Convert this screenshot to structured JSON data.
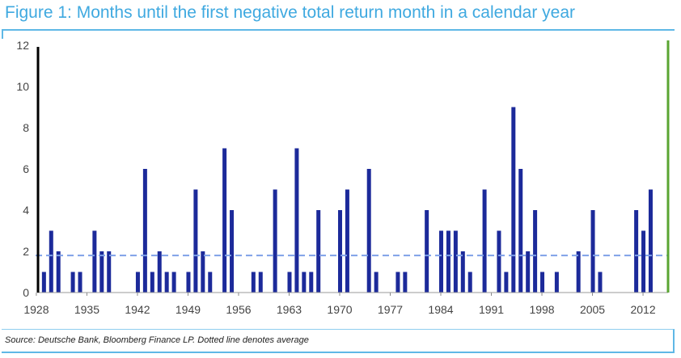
{
  "title": "Figure 1: Months until the first negative total return month in a calendar year",
  "source": "Source: Deutsche Bank, Bloomberg Finance LP. Dotted line denotes average",
  "colors": {
    "title": "#3fa9e0",
    "bar": "#1c2a9a",
    "average": "#7fa0e8",
    "right_axis": "#5aa532"
  },
  "chart_data": {
    "type": "bar",
    "xlabel": "",
    "ylabel": "",
    "ylim": [
      0,
      12
    ],
    "yticks": [
      0,
      2,
      4,
      6,
      8,
      10,
      12
    ],
    "xticks": [
      1928,
      1935,
      1942,
      1949,
      1956,
      1963,
      1970,
      1977,
      1984,
      1991,
      1998,
      2005,
      2012
    ],
    "xlim": [
      1927,
      2019
    ],
    "average": 1.8,
    "grid": false,
    "legend": "none",
    "bars": [
      {
        "year": 1929,
        "value": 1
      },
      {
        "year": 1930,
        "value": 3
      },
      {
        "year": 1931,
        "value": 2
      },
      {
        "year": 1933,
        "value": 1
      },
      {
        "year": 1934,
        "value": 1
      },
      {
        "year": 1936,
        "value": 3
      },
      {
        "year": 1937,
        "value": 2
      },
      {
        "year": 1938,
        "value": 2
      },
      {
        "year": 1942,
        "value": 1
      },
      {
        "year": 1943,
        "value": 6
      },
      {
        "year": 1944,
        "value": 1
      },
      {
        "year": 1945,
        "value": 2
      },
      {
        "year": 1946,
        "value": 1
      },
      {
        "year": 1947,
        "value": 1
      },
      {
        "year": 1949,
        "value": 1
      },
      {
        "year": 1950,
        "value": 5
      },
      {
        "year": 1951,
        "value": 2
      },
      {
        "year": 1952,
        "value": 1
      },
      {
        "year": 1954,
        "value": 7
      },
      {
        "year": 1955,
        "value": 4
      },
      {
        "year": 1958,
        "value": 1
      },
      {
        "year": 1959,
        "value": 1
      },
      {
        "year": 1961,
        "value": 5
      },
      {
        "year": 1963,
        "value": 1
      },
      {
        "year": 1964,
        "value": 7
      },
      {
        "year": 1965,
        "value": 1
      },
      {
        "year": 1966,
        "value": 1
      },
      {
        "year": 1967,
        "value": 4
      },
      {
        "year": 1970,
        "value": 4
      },
      {
        "year": 1971,
        "value": 5
      },
      {
        "year": 1974,
        "value": 6
      },
      {
        "year": 1975,
        "value": 1
      },
      {
        "year": 1978,
        "value": 1
      },
      {
        "year": 1979,
        "value": 1
      },
      {
        "year": 1982,
        "value": 4
      },
      {
        "year": 1984,
        "value": 3
      },
      {
        "year": 1985,
        "value": 3
      },
      {
        "year": 1986,
        "value": 3
      },
      {
        "year": 1987,
        "value": 2
      },
      {
        "year": 1988,
        "value": 1
      },
      {
        "year": 1990,
        "value": 5
      },
      {
        "year": 1992,
        "value": 3
      },
      {
        "year": 1993,
        "value": 1
      },
      {
        "year": 1994,
        "value": 9
      },
      {
        "year": 1995,
        "value": 6
      },
      {
        "year": 1996,
        "value": 2
      },
      {
        "year": 1997,
        "value": 4
      },
      {
        "year": 1998,
        "value": 1
      },
      {
        "year": 2000,
        "value": 1
      },
      {
        "year": 2003,
        "value": 2
      },
      {
        "year": 2005,
        "value": 4
      },
      {
        "year": 2006,
        "value": 1
      },
      {
        "year": 2011,
        "value": 4
      },
      {
        "year": 2012,
        "value": 3
      },
      {
        "year": 2013,
        "value": 5
      }
    ]
  }
}
